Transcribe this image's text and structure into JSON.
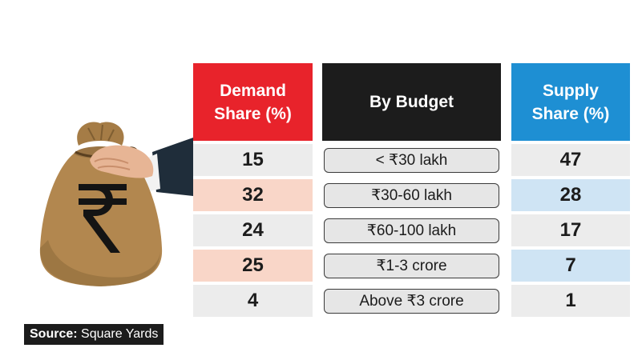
{
  "chart_data": {
    "type": "table",
    "columns": [
      "Demand Share (%)",
      "By Budget",
      "Supply Share (%)"
    ],
    "rows": [
      {
        "demand": "15",
        "budget": "< ₹30 lakh",
        "supply": "47"
      },
      {
        "demand": "32",
        "budget": "₹30-60 lakh",
        "supply": "28"
      },
      {
        "demand": "24",
        "budget": "₹60-100 lakh",
        "supply": "17"
      },
      {
        "demand": "25",
        "budget": "₹1-3 crore",
        "supply": "7"
      },
      {
        "demand": "4",
        "budget": "Above ₹3 crore",
        "supply": "1"
      }
    ]
  },
  "headers": {
    "demand": "Demand Share (%)",
    "budget": "By Budget",
    "supply": "Supply Share (%)"
  },
  "source": {
    "label": "Source:",
    "value": " Square Yards"
  },
  "illustration": {
    "symbol": "₹",
    "icon": "money-bag-rupee-icon"
  },
  "colors": {
    "demand_header": "#e8232b",
    "budget_header": "#1c1c1c",
    "supply_header": "#1e8fd3",
    "demand_highlight": "#f9d6c8",
    "supply_highlight": "#cfe4f4",
    "row_neutral": "#ececec"
  }
}
